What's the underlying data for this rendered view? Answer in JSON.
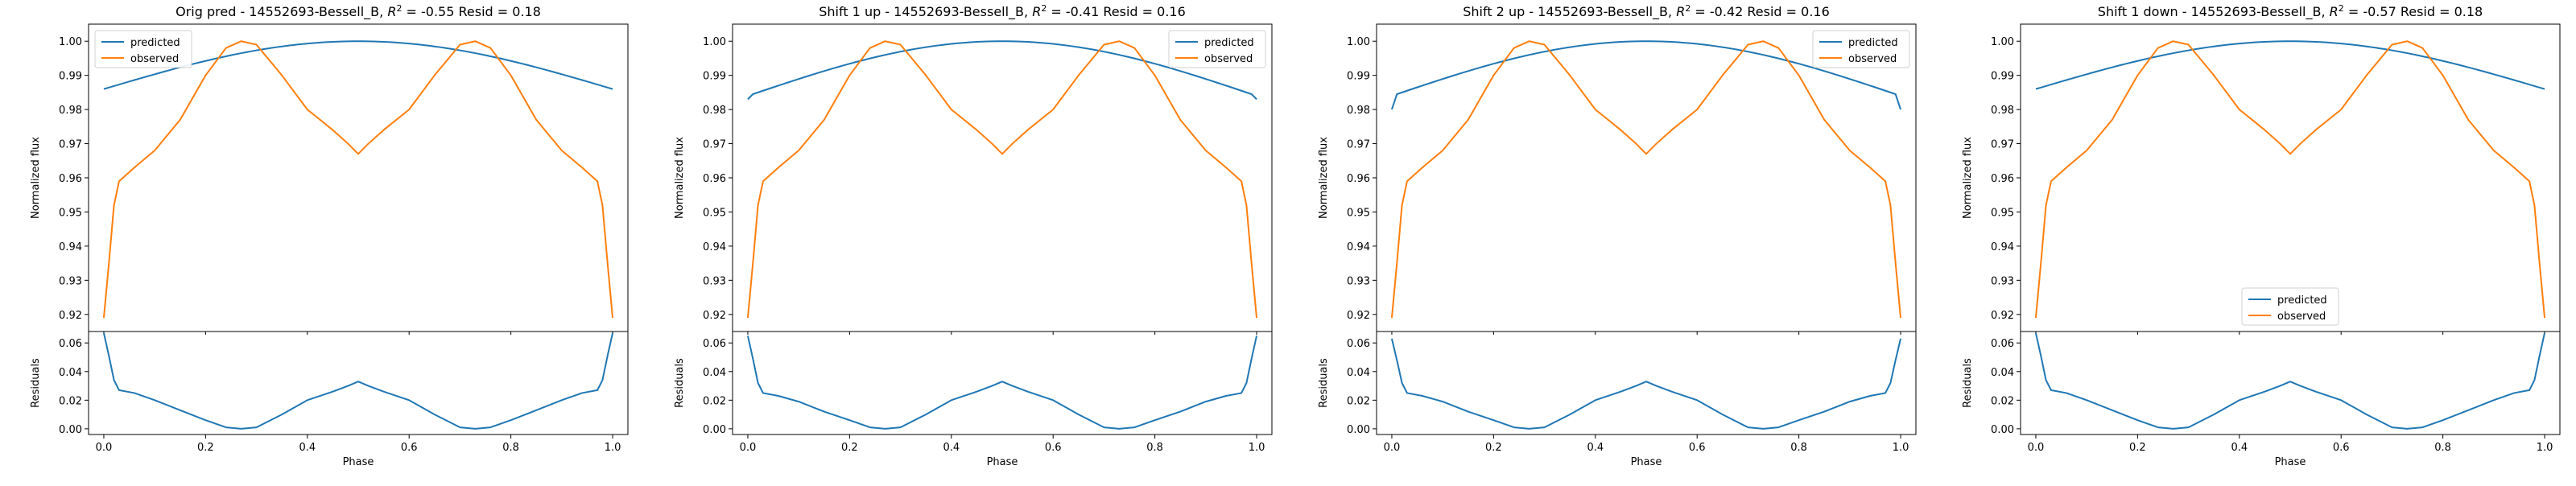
{
  "colors": {
    "predicted": "#1f77b4",
    "observed": "#ff7f0e",
    "axes": "#000000"
  },
  "chart_data": [
    {
      "type": "line",
      "title": "Orig pred - 14552693-Bessell_B, R² = -0.55 Resid = 0.18",
      "title_parts": {
        "prefix": "Orig pred - 14552693-Bessell_B, ",
        "r2_label": "R",
        "r2_sup": "2",
        "suffix": " = -0.55 Resid = 0.18"
      },
      "legend": {
        "entries": [
          "predicted",
          "observed"
        ],
        "position": "upper left"
      },
      "flux_panel": {
        "ylabel": "Normalized flux",
        "ylim": [
          0.915,
          1.005
        ],
        "yticks": [
          "0.92",
          "0.93",
          "0.94",
          "0.95",
          "0.96",
          "0.97",
          "0.98",
          "0.99",
          "1.00"
        ]
      },
      "resid_panel": {
        "ylabel": "Residuals",
        "ylim": [
          -0.004,
          0.068
        ],
        "yticks": [
          "0.00",
          "0.02",
          "0.04",
          "0.06"
        ]
      },
      "xlabel": "Phase",
      "xlim": [
        -0.03,
        1.03
      ],
      "xticks": [
        "0.0",
        "0.2",
        "0.4",
        "0.6",
        "0.8",
        "1.0"
      ],
      "predicted": {
        "name": "predicted",
        "edge": 0.986,
        "peak": 1.0,
        "edge_drop": 0.0
      },
      "observed": {
        "name": "observed",
        "x": [
          0.0,
          0.01,
          0.02,
          0.03,
          0.06,
          0.1,
          0.15,
          0.2,
          0.24,
          0.27,
          0.3,
          0.35,
          0.4,
          0.45,
          0.48,
          0.5,
          0.52,
          0.55,
          0.6,
          0.65,
          0.7,
          0.73,
          0.76,
          0.8,
          0.85,
          0.9,
          0.94,
          0.97,
          0.98,
          0.99,
          1.0
        ],
        "y": [
          0.919,
          0.935,
          0.952,
          0.959,
          0.963,
          0.968,
          0.977,
          0.99,
          0.998,
          1.0,
          0.999,
          0.99,
          0.98,
          0.974,
          0.97,
          0.967,
          0.97,
          0.974,
          0.98,
          0.99,
          0.999,
          1.0,
          0.998,
          0.99,
          0.977,
          0.968,
          0.963,
          0.959,
          0.952,
          0.935,
          0.919
        ]
      },
      "residuals": {
        "x": [
          0.0,
          0.01,
          0.02,
          0.03,
          0.06,
          0.1,
          0.15,
          0.2,
          0.24,
          0.27,
          0.3,
          0.35,
          0.4,
          0.45,
          0.48,
          0.5,
          0.52,
          0.55,
          0.6,
          0.65,
          0.7,
          0.73,
          0.76,
          0.8,
          0.85,
          0.9,
          0.94,
          0.97,
          0.98,
          0.99,
          1.0
        ],
        "y": [
          0.067,
          0.051,
          0.034,
          0.027,
          0.025,
          0.02,
          0.013,
          0.006,
          0.001,
          0.0,
          0.001,
          0.01,
          0.02,
          0.026,
          0.03,
          0.033,
          0.03,
          0.026,
          0.02,
          0.01,
          0.001,
          0.0,
          0.001,
          0.006,
          0.013,
          0.02,
          0.025,
          0.027,
          0.034,
          0.051,
          0.067
        ]
      }
    },
    {
      "type": "line",
      "title": "Shift 1 up - 14552693-Bessell_B, R² = -0.41 Resid = 0.16",
      "title_parts": {
        "prefix": "Shift 1 up - 14552693-Bessell_B, ",
        "r2_label": "R",
        "r2_sup": "2",
        "suffix": " = -0.41 Resid = 0.16"
      },
      "legend": {
        "entries": [
          "predicted",
          "observed"
        ],
        "position": "upper right"
      },
      "flux_panel": {
        "ylabel": "Normalized flux",
        "ylim": [
          0.915,
          1.005
        ],
        "yticks": [
          "0.92",
          "0.93",
          "0.94",
          "0.95",
          "0.96",
          "0.97",
          "0.98",
          "0.99",
          "1.00"
        ]
      },
      "resid_panel": {
        "ylabel": "Residuals",
        "ylim": [
          -0.004,
          0.068
        ],
        "yticks": [
          "0.00",
          "0.02",
          "0.04",
          "0.06"
        ]
      },
      "xlabel": "Phase",
      "xlim": [
        -0.03,
        1.03
      ],
      "xticks": [
        "0.0",
        "0.2",
        "0.4",
        "0.6",
        "0.8",
        "1.0"
      ],
      "predicted": {
        "name": "predicted",
        "edge": 0.984,
        "peak": 1.0,
        "edge_drop": 0.001
      },
      "observed": {
        "name": "observed",
        "x": [
          0.0,
          0.01,
          0.02,
          0.03,
          0.06,
          0.1,
          0.15,
          0.2,
          0.24,
          0.27,
          0.3,
          0.35,
          0.4,
          0.45,
          0.48,
          0.5,
          0.52,
          0.55,
          0.6,
          0.65,
          0.7,
          0.73,
          0.76,
          0.8,
          0.85,
          0.9,
          0.94,
          0.97,
          0.98,
          0.99,
          1.0
        ],
        "y": [
          0.919,
          0.935,
          0.952,
          0.959,
          0.963,
          0.968,
          0.977,
          0.99,
          0.998,
          1.0,
          0.999,
          0.99,
          0.98,
          0.974,
          0.97,
          0.967,
          0.97,
          0.974,
          0.98,
          0.99,
          0.999,
          1.0,
          0.998,
          0.99,
          0.977,
          0.968,
          0.963,
          0.959,
          0.952,
          0.935,
          0.919
        ]
      },
      "residuals": {
        "x": [
          0.0,
          0.01,
          0.02,
          0.03,
          0.06,
          0.1,
          0.15,
          0.2,
          0.24,
          0.27,
          0.3,
          0.35,
          0.4,
          0.45,
          0.48,
          0.5,
          0.52,
          0.55,
          0.6,
          0.65,
          0.7,
          0.73,
          0.76,
          0.8,
          0.85,
          0.9,
          0.94,
          0.97,
          0.98,
          0.99,
          1.0
        ],
        "y": [
          0.065,
          0.049,
          0.032,
          0.025,
          0.023,
          0.019,
          0.012,
          0.006,
          0.001,
          0.0,
          0.001,
          0.01,
          0.02,
          0.026,
          0.03,
          0.033,
          0.03,
          0.026,
          0.02,
          0.01,
          0.001,
          0.0,
          0.001,
          0.006,
          0.012,
          0.019,
          0.023,
          0.025,
          0.032,
          0.049,
          0.065
        ]
      }
    },
    {
      "type": "line",
      "title": "Shift 2 up - 14552693-Bessell_B, R² = -0.42 Resid = 0.16",
      "title_parts": {
        "prefix": "Shift 2 up - 14552693-Bessell_B, ",
        "r2_label": "R",
        "r2_sup": "2",
        "suffix": " = -0.42 Resid = 0.16"
      },
      "legend": {
        "entries": [
          "predicted",
          "observed"
        ],
        "position": "upper right"
      },
      "flux_panel": {
        "ylabel": "Normalized flux",
        "ylim": [
          0.915,
          1.005
        ],
        "yticks": [
          "0.92",
          "0.93",
          "0.94",
          "0.95",
          "0.96",
          "0.97",
          "0.98",
          "0.99",
          "1.00"
        ]
      },
      "resid_panel": {
        "ylabel": "Residuals",
        "ylim": [
          -0.004,
          0.068
        ],
        "yticks": [
          "0.00",
          "0.02",
          "0.04",
          "0.06"
        ]
      },
      "xlabel": "Phase",
      "xlim": [
        -0.03,
        1.03
      ],
      "xticks": [
        "0.0",
        "0.2",
        "0.4",
        "0.6",
        "0.8",
        "1.0"
      ],
      "predicted": {
        "name": "predicted",
        "edge": 0.984,
        "peak": 1.0,
        "edge_drop": 0.004
      },
      "observed": {
        "name": "observed",
        "x": [
          0.0,
          0.01,
          0.02,
          0.03,
          0.06,
          0.1,
          0.15,
          0.2,
          0.24,
          0.27,
          0.3,
          0.35,
          0.4,
          0.45,
          0.48,
          0.5,
          0.52,
          0.55,
          0.6,
          0.65,
          0.7,
          0.73,
          0.76,
          0.8,
          0.85,
          0.9,
          0.94,
          0.97,
          0.98,
          0.99,
          1.0
        ],
        "y": [
          0.919,
          0.935,
          0.952,
          0.959,
          0.963,
          0.968,
          0.977,
          0.99,
          0.998,
          1.0,
          0.999,
          0.99,
          0.98,
          0.974,
          0.97,
          0.967,
          0.97,
          0.974,
          0.98,
          0.99,
          0.999,
          1.0,
          0.998,
          0.99,
          0.977,
          0.968,
          0.963,
          0.959,
          0.952,
          0.935,
          0.919
        ]
      },
      "residuals": {
        "x": [
          0.0,
          0.01,
          0.02,
          0.03,
          0.06,
          0.1,
          0.15,
          0.2,
          0.24,
          0.27,
          0.3,
          0.35,
          0.4,
          0.45,
          0.48,
          0.5,
          0.52,
          0.55,
          0.6,
          0.65,
          0.7,
          0.73,
          0.76,
          0.8,
          0.85,
          0.9,
          0.94,
          0.97,
          0.98,
          0.99,
          1.0
        ],
        "y": [
          0.063,
          0.048,
          0.032,
          0.025,
          0.023,
          0.019,
          0.012,
          0.006,
          0.001,
          0.0,
          0.001,
          0.01,
          0.02,
          0.026,
          0.03,
          0.033,
          0.03,
          0.026,
          0.02,
          0.01,
          0.001,
          0.0,
          0.001,
          0.006,
          0.012,
          0.019,
          0.023,
          0.025,
          0.032,
          0.048,
          0.063
        ]
      }
    },
    {
      "type": "line",
      "title": "Shift 1 down - 14552693-Bessell_B, R² = -0.57 Resid = 0.18",
      "title_parts": {
        "prefix": "Shift 1 down - 14552693-Bessell_B, ",
        "r2_label": "R",
        "r2_sup": "2",
        "suffix": " = -0.57 Resid = 0.18"
      },
      "legend": {
        "entries": [
          "predicted",
          "observed"
        ],
        "position": "lower center"
      },
      "flux_panel": {
        "ylabel": "Normalized flux",
        "ylim": [
          0.915,
          1.005
        ],
        "yticks": [
          "0.92",
          "0.93",
          "0.94",
          "0.95",
          "0.96",
          "0.97",
          "0.98",
          "0.99",
          "1.00"
        ]
      },
      "resid_panel": {
        "ylabel": "Residuals",
        "ylim": [
          -0.004,
          0.068
        ],
        "yticks": [
          "0.00",
          "0.02",
          "0.04",
          "0.06"
        ]
      },
      "xlabel": "Phase",
      "xlim": [
        -0.03,
        1.03
      ],
      "xticks": [
        "0.0",
        "0.2",
        "0.4",
        "0.6",
        "0.8",
        "1.0"
      ],
      "predicted": {
        "name": "predicted",
        "edge": 0.986,
        "peak": 1.0,
        "edge_drop": 0.0
      },
      "observed": {
        "name": "observed",
        "x": [
          0.0,
          0.01,
          0.02,
          0.03,
          0.06,
          0.1,
          0.15,
          0.2,
          0.24,
          0.27,
          0.3,
          0.35,
          0.4,
          0.45,
          0.48,
          0.5,
          0.52,
          0.55,
          0.6,
          0.65,
          0.7,
          0.73,
          0.76,
          0.8,
          0.85,
          0.9,
          0.94,
          0.97,
          0.98,
          0.99,
          1.0
        ],
        "y": [
          0.919,
          0.935,
          0.952,
          0.959,
          0.963,
          0.968,
          0.977,
          0.99,
          0.998,
          1.0,
          0.999,
          0.99,
          0.98,
          0.974,
          0.97,
          0.967,
          0.97,
          0.974,
          0.98,
          0.99,
          0.999,
          1.0,
          0.998,
          0.99,
          0.977,
          0.968,
          0.963,
          0.959,
          0.952,
          0.935,
          0.919
        ]
      },
      "residuals": {
        "x": [
          0.0,
          0.01,
          0.02,
          0.03,
          0.06,
          0.1,
          0.15,
          0.2,
          0.24,
          0.27,
          0.3,
          0.35,
          0.4,
          0.45,
          0.48,
          0.5,
          0.52,
          0.55,
          0.6,
          0.65,
          0.7,
          0.73,
          0.76,
          0.8,
          0.85,
          0.9,
          0.94,
          0.97,
          0.98,
          0.99,
          1.0
        ],
        "y": [
          0.067,
          0.051,
          0.034,
          0.027,
          0.025,
          0.02,
          0.013,
          0.006,
          0.001,
          0.0,
          0.001,
          0.01,
          0.02,
          0.026,
          0.03,
          0.033,
          0.03,
          0.026,
          0.02,
          0.01,
          0.001,
          0.0,
          0.001,
          0.006,
          0.013,
          0.02,
          0.025,
          0.027,
          0.034,
          0.051,
          0.067
        ]
      }
    }
  ]
}
